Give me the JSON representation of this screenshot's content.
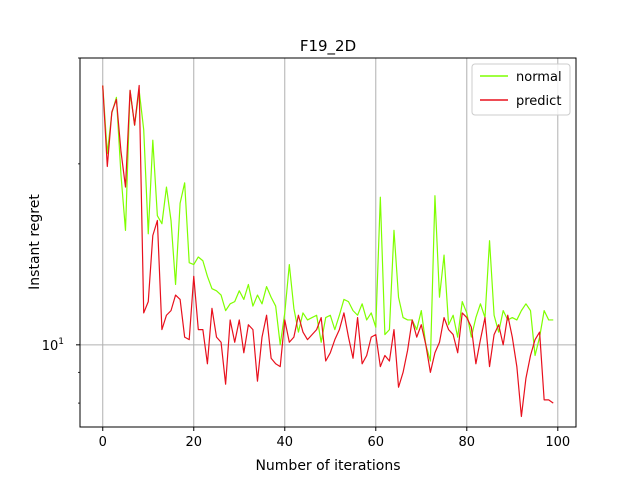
{
  "chart_data": {
    "type": "line",
    "title": "F19_2D",
    "xlabel": "Number of iterations",
    "ylabel": "Instant regret",
    "xlim": [
      -5,
      104
    ],
    "yscale": "log",
    "ylim": [
      7.3,
      30.0
    ],
    "xticks": [
      0,
      20,
      40,
      60,
      80,
      100
    ],
    "xtick_labels": [
      "0",
      "20",
      "40",
      "60",
      "80",
      "100"
    ],
    "yticks": [
      10
    ],
    "ytick_labels": [
      "10^1"
    ],
    "ytick_base": "10",
    "ytick_exp": "1",
    "grid": true,
    "legend_position": "top-right",
    "series": [
      {
        "name": "normal",
        "color": "#7fff00",
        "x": [
          0,
          1,
          2,
          3,
          4,
          5,
          6,
          7,
          8,
          9,
          10,
          11,
          12,
          13,
          14,
          15,
          16,
          17,
          18,
          19,
          20,
          21,
          22,
          23,
          24,
          25,
          26,
          27,
          28,
          29,
          30,
          31,
          32,
          33,
          34,
          35,
          36,
          37,
          38,
          39,
          40,
          41,
          42,
          43,
          44,
          45,
          46,
          47,
          48,
          49,
          50,
          51,
          52,
          53,
          54,
          55,
          56,
          57,
          58,
          59,
          60,
          61,
          62,
          63,
          64,
          65,
          66,
          67,
          68,
          69,
          70,
          71,
          72,
          73,
          74,
          75,
          76,
          77,
          78,
          79,
          80,
          81,
          82,
          83,
          84,
          85,
          86,
          87,
          88,
          89,
          90,
          91,
          92,
          93,
          94,
          95,
          96,
          97,
          98,
          99
        ],
        "values": [
          27.0,
          20.8,
          24.3,
          25.8,
          19.2,
          15.5,
          26.5,
          23.2,
          26.5,
          22.8,
          15.3,
          21.9,
          16.4,
          15.9,
          18.3,
          16.1,
          12.6,
          17.2,
          18.6,
          13.7,
          13.6,
          14.0,
          13.8,
          13.0,
          12.4,
          12.3,
          12.1,
          11.4,
          11.7,
          11.8,
          12.3,
          11.9,
          12.6,
          11.6,
          12.1,
          11.7,
          12.5,
          12.0,
          11.6,
          10.0,
          11.3,
          13.6,
          11.5,
          10.5,
          11.3,
          11.0,
          11.1,
          11.2,
          10.1,
          11.1,
          11.2,
          10.6,
          11.2,
          11.9,
          11.8,
          11.4,
          11.2,
          11.7,
          11.0,
          11.3,
          10.7,
          17.6,
          10.4,
          10.6,
          15.5,
          12.0,
          11.1,
          11.0,
          11.0,
          10.6,
          11.4,
          10.0,
          9.4,
          17.7,
          12.0,
          14.1,
          10.8,
          11.2,
          10.3,
          11.8,
          11.3,
          10.3,
          11.1,
          11.7,
          11.1,
          14.9,
          11.2,
          10.5,
          11.4,
          11.0,
          11.1,
          11.0,
          11.4,
          11.7,
          11.4,
          9.6,
          10.3,
          11.4,
          11.0,
          11.0
        ]
      },
      {
        "name": "predict",
        "color": "#e8101d",
        "x": [
          0,
          1,
          2,
          3,
          4,
          5,
          6,
          7,
          8,
          9,
          10,
          11,
          12,
          13,
          14,
          15,
          16,
          17,
          18,
          19,
          20,
          21,
          22,
          23,
          24,
          25,
          26,
          27,
          28,
          29,
          30,
          31,
          32,
          33,
          34,
          35,
          36,
          37,
          38,
          39,
          40,
          41,
          42,
          43,
          44,
          45,
          46,
          47,
          48,
          49,
          50,
          51,
          52,
          53,
          54,
          55,
          56,
          57,
          58,
          59,
          60,
          61,
          62,
          63,
          64,
          65,
          66,
          67,
          68,
          69,
          70,
          71,
          72,
          73,
          74,
          75,
          76,
          77,
          78,
          79,
          80,
          81,
          82,
          83,
          84,
          85,
          86,
          87,
          88,
          89,
          90,
          91,
          92,
          93,
          94,
          95,
          96,
          97,
          98,
          99
        ],
        "values": [
          27.0,
          19.8,
          24.4,
          25.6,
          21.0,
          18.3,
          26.5,
          23.2,
          27.0,
          11.3,
          11.8,
          15.2,
          16.1,
          10.6,
          11.2,
          11.4,
          12.1,
          11.9,
          10.3,
          10.2,
          13.0,
          10.6,
          10.6,
          9.3,
          11.5,
          10.3,
          10.1,
          8.6,
          11.0,
          10.1,
          11.0,
          9.7,
          10.8,
          10.6,
          8.7,
          10.3,
          11.2,
          9.5,
          9.3,
          9.2,
          11.0,
          10.1,
          10.3,
          11.2,
          10.5,
          10.2,
          10.4,
          10.6,
          11.1,
          9.4,
          9.7,
          10.2,
          10.6,
          11.3,
          10.3,
          9.5,
          11.1,
          9.3,
          9.6,
          10.3,
          10.4,
          9.2,
          9.6,
          9.4,
          10.6,
          8.5,
          9.0,
          9.8,
          11.0,
          10.3,
          10.8,
          10.0,
          9.0,
          9.7,
          10.1,
          11.1,
          10.6,
          10.4,
          9.7,
          11.3,
          11.1,
          10.7,
          9.3,
          10.2,
          11.1,
          9.2,
          10.4,
          10.8,
          10.0,
          11.2,
          10.3,
          9.2,
          7.6,
          8.8,
          9.6,
          10.2,
          10.5,
          8.1,
          8.1,
          8.0
        ]
      }
    ]
  }
}
